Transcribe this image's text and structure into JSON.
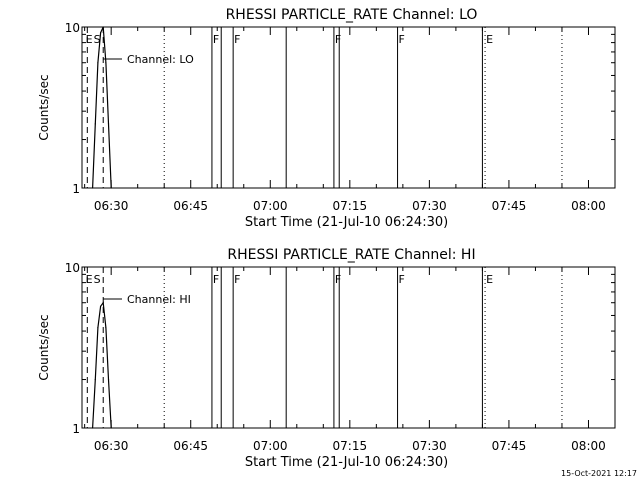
{
  "footer": {
    "timestamp": "15-Oct-2021 12:17"
  },
  "chart_data": [
    {
      "type": "line",
      "title": "RHESSI PARTICLE_RATE Channel: LO",
      "xlabel": "Start Time (21-Jul-10 06:24:30)",
      "ylabel": "Counts/sec",
      "y_scale": "log",
      "ylim": [
        1,
        10
      ],
      "y_tick_labels": [
        "1",
        "10"
      ],
      "xlim": [
        "06:24:30",
        "08:05:00"
      ],
      "x_tick_labels": [
        "06:30",
        "06:45",
        "07:00",
        "07:15",
        "07:30",
        "07:45",
        "08:00"
      ],
      "series": [
        {
          "name": "Channel: LO",
          "x": [
            "06:26:30",
            "06:27:00",
            "06:27:30",
            "06:28:00",
            "06:28:30",
            "06:29:00",
            "06:29:30",
            "06:30:00"
          ],
          "y": [
            1,
            2.5,
            6,
            9.2,
            10,
            6,
            2.5,
            1
          ]
        }
      ],
      "vlines": {
        "solid": [
          "06:49:00",
          "06:50:45",
          "06:53:00",
          "07:03:00",
          "07:12:00",
          "07:13:00",
          "07:24:00",
          "07:40:00"
        ],
        "dashed": [
          "06:25:30",
          "06:28:30"
        ],
        "dotted": [
          "06:40:00",
          "07:40:30",
          "07:55:00"
        ]
      },
      "annotations": [
        {
          "text": "E",
          "x": "06:25:00"
        },
        {
          "text": "S",
          "x": "06:26:30"
        },
        {
          "text": "F",
          "x": "06:49:00"
        },
        {
          "text": "F",
          "x": "06:53:00"
        },
        {
          "text": "F",
          "x": "07:12:00"
        },
        {
          "text": "F",
          "x": "07:24:00"
        },
        {
          "text": "E",
          "x": "07:40:30"
        }
      ]
    },
    {
      "type": "line",
      "title": "RHESSI PARTICLE_RATE Channel: HI",
      "xlabel": "Start Time (21-Jul-10 06:24:30)",
      "ylabel": "Counts/sec",
      "y_scale": "log",
      "ylim": [
        1,
        10
      ],
      "y_tick_labels": [
        "1",
        "10"
      ],
      "xlim": [
        "06:24:30",
        "08:05:00"
      ],
      "x_tick_labels": [
        "06:30",
        "06:45",
        "07:00",
        "07:15",
        "07:30",
        "07:45",
        "08:00"
      ],
      "series": [
        {
          "name": "Channel: HI",
          "x": [
            "06:26:30",
            "06:27:00",
            "06:27:30",
            "06:28:00",
            "06:28:30",
            "06:29:00",
            "06:29:30",
            "06:30:00"
          ],
          "y": [
            1,
            2,
            4.2,
            5.7,
            6,
            4.2,
            2,
            1
          ]
        }
      ],
      "vlines": {
        "solid": [
          "06:49:00",
          "06:50:45",
          "06:53:00",
          "07:03:00",
          "07:12:00",
          "07:13:00",
          "07:24:00",
          "07:40:00"
        ],
        "dashed": [
          "06:25:30",
          "06:28:30"
        ],
        "dotted": [
          "06:40:00",
          "07:40:30",
          "07:55:00"
        ]
      },
      "annotations": [
        {
          "text": "E",
          "x": "06:25:00"
        },
        {
          "text": "S",
          "x": "06:26:30"
        },
        {
          "text": "F",
          "x": "06:49:00"
        },
        {
          "text": "F",
          "x": "06:53:00"
        },
        {
          "text": "F",
          "x": "07:12:00"
        },
        {
          "text": "F",
          "x": "07:24:00"
        },
        {
          "text": "E",
          "x": "07:40:30"
        }
      ]
    }
  ]
}
